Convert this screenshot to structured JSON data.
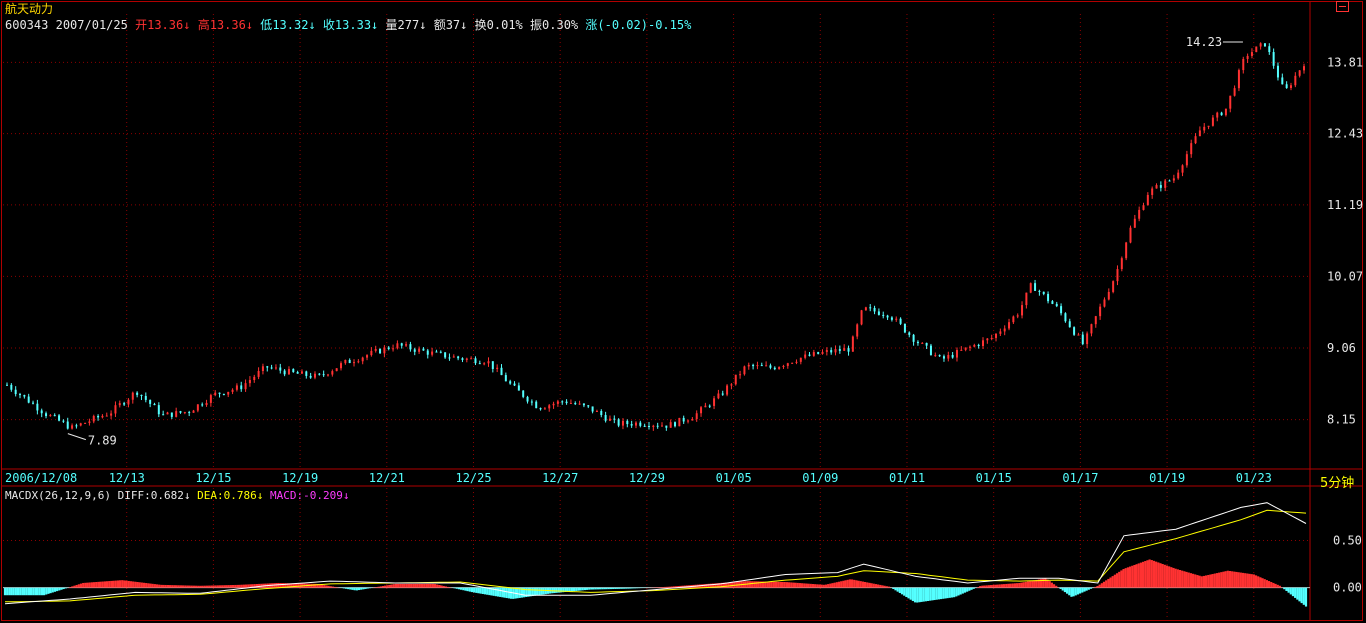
{
  "stock": {
    "name": "航天动力",
    "code": "600343",
    "date": "2007/01/25",
    "open_label": "开",
    "open": "13.36",
    "open_arrow": "↓",
    "high_label": "高",
    "high": "13.36",
    "high_arrow": "↓",
    "low_label": "低",
    "low": "13.32",
    "low_arrow": "↓",
    "close_label": "收",
    "close": "13.33",
    "close_arrow": "↓",
    "volume_label": "量",
    "volume": "277",
    "volume_arrow": "↓",
    "amount_label": "额",
    "amount": "37",
    "amount_arrow": "↓",
    "turnover_label": "换",
    "turnover": "0.01%",
    "amplitude_label": "振",
    "amplitude": "0.30%",
    "change_label": "涨",
    "change": "(-0.02)-0.15%"
  },
  "period_label": "5分钟",
  "macd_legend": {
    "name": "MACDX(26,12,9,6)",
    "diff_label": "DIFF:",
    "diff": "0.682",
    "diff_arrow": "↓",
    "dea_label": "DEA:",
    "dea": "0.786",
    "dea_arrow": "↓",
    "macd_label": "MACD:",
    "macd": "-0.209",
    "macd_arrow": "↓"
  },
  "colors": {
    "background": "#000000",
    "grid": "#8b0000",
    "border": "#b00000",
    "up": "#ff3232",
    "down": "#54ffff",
    "axis_text": "#e8e8e8",
    "date_text": "#54ffff",
    "diff_line": "#ffffff",
    "dea_line": "#ffff00"
  },
  "chart_data": [
    {
      "type": "candlestick",
      "title": "航天动力",
      "x_tick_labels": [
        "2006/12/08",
        "12/13",
        "12/15",
        "12/19",
        "12/21",
        "12/25",
        "12/27",
        "12/29",
        "01/05",
        "01/09",
        "01/11",
        "01/15",
        "01/17",
        "01/19",
        "01/23"
      ],
      "y_tick_labels": [
        "13.81",
        "12.43",
        "11.19",
        "10.07",
        "9.06",
        "8.15"
      ],
      "y_tick_values": [
        13.81,
        12.43,
        11.19,
        10.07,
        9.06,
        8.15
      ],
      "ylim": [
        7.6,
        14.4
      ],
      "log_scale": true,
      "grid": true,
      "annotations": [
        {
          "text": "14.23",
          "price": 14.23,
          "note": "period high"
        },
        {
          "text": "7.89",
          "price": 7.89,
          "note": "period low"
        }
      ],
      "close_path_approx": [
        [
          0,
          8.58
        ],
        [
          0.03,
          8.22
        ],
        [
          0.05,
          8.05
        ],
        [
          0.08,
          8.24
        ],
        [
          0.1,
          8.5
        ],
        [
          0.12,
          8.2
        ],
        [
          0.14,
          8.25
        ],
        [
          0.16,
          8.46
        ],
        [
          0.18,
          8.55
        ],
        [
          0.2,
          8.81
        ],
        [
          0.22,
          8.73
        ],
        [
          0.24,
          8.68
        ],
        [
          0.26,
          8.86
        ],
        [
          0.28,
          8.98
        ],
        [
          0.3,
          9.1
        ],
        [
          0.33,
          8.98
        ],
        [
          0.35,
          8.92
        ],
        [
          0.37,
          8.89
        ],
        [
          0.39,
          8.55
        ],
        [
          0.41,
          8.3
        ],
        [
          0.43,
          8.38
        ],
        [
          0.45,
          8.28
        ],
        [
          0.47,
          8.1
        ],
        [
          0.49,
          8.11
        ],
        [
          0.51,
          8.08
        ],
        [
          0.53,
          8.2
        ],
        [
          0.55,
          8.45
        ],
        [
          0.57,
          8.82
        ],
        [
          0.59,
          8.8
        ],
        [
          0.61,
          8.92
        ],
        [
          0.63,
          9.0
        ],
        [
          0.65,
          9.05
        ],
        [
          0.66,
          9.6
        ],
        [
          0.68,
          9.52
        ],
        [
          0.7,
          9.17
        ],
        [
          0.72,
          8.9
        ],
        [
          0.74,
          9.05
        ],
        [
          0.76,
          9.2
        ],
        [
          0.78,
          9.55
        ],
        [
          0.79,
          9.95
        ],
        [
          0.81,
          9.6
        ],
        [
          0.83,
          9.1
        ],
        [
          0.845,
          9.7
        ],
        [
          0.855,
          10.1
        ],
        [
          0.865,
          10.75
        ],
        [
          0.88,
          11.4
        ],
        [
          0.9,
          11.65
        ],
        [
          0.92,
          12.5
        ],
        [
          0.94,
          12.9
        ],
        [
          0.955,
          13.95
        ],
        [
          0.97,
          14.2
        ],
        [
          0.985,
          13.2
        ],
        [
          1.0,
          13.8
        ]
      ]
    },
    {
      "type": "macd",
      "name": "MACDX(26,12,9,6)",
      "series": [
        {
          "name": "DIFF",
          "last": 0.682
        },
        {
          "name": "DEA",
          "last": 0.786
        },
        {
          "name": "MACD",
          "last": -0.209
        }
      ],
      "y_tick_labels": [
        "0.50",
        "0.00"
      ],
      "y_tick_values": [
        0.5,
        0.0
      ],
      "ylim": [
        -0.3,
        0.95
      ],
      "histogram_approx": [
        [
          0,
          -0.08
        ],
        [
          0.03,
          -0.08
        ],
        [
          0.06,
          0.05
        ],
        [
          0.09,
          0.08
        ],
        [
          0.12,
          0.03
        ],
        [
          0.15,
          0.02
        ],
        [
          0.18,
          0.03
        ],
        [
          0.21,
          0.05
        ],
        [
          0.24,
          0.04
        ],
        [
          0.27,
          -0.03
        ],
        [
          0.3,
          0.04
        ],
        [
          0.33,
          0.04
        ],
        [
          0.36,
          -0.05
        ],
        [
          0.39,
          -0.12
        ],
        [
          0.42,
          -0.06
        ],
        [
          0.45,
          -0.02
        ],
        [
          0.48,
          -0.01
        ],
        [
          0.51,
          0.01
        ],
        [
          0.54,
          0.04
        ],
        [
          0.57,
          0.07
        ],
        [
          0.6,
          0.06
        ],
        [
          0.63,
          0.03
        ],
        [
          0.65,
          0.09
        ],
        [
          0.68,
          0.01
        ],
        [
          0.7,
          -0.16
        ],
        [
          0.73,
          -0.1
        ],
        [
          0.75,
          0.02
        ],
        [
          0.78,
          0.05
        ],
        [
          0.8,
          0.1
        ],
        [
          0.82,
          -0.1
        ],
        [
          0.84,
          0.02
        ],
        [
          0.86,
          0.2
        ],
        [
          0.88,
          0.3
        ],
        [
          0.9,
          0.2
        ],
        [
          0.92,
          0.12
        ],
        [
          0.94,
          0.18
        ],
        [
          0.96,
          0.14
        ],
        [
          0.98,
          0.02
        ],
        [
          1.0,
          -0.2
        ]
      ],
      "diff_approx": [
        [
          0,
          -0.17
        ],
        [
          0.05,
          -0.12
        ],
        [
          0.1,
          -0.05
        ],
        [
          0.15,
          -0.06
        ],
        [
          0.2,
          0.02
        ],
        [
          0.25,
          0.07
        ],
        [
          0.3,
          0.05
        ],
        [
          0.35,
          0.05
        ],
        [
          0.4,
          -0.08
        ],
        [
          0.45,
          -0.08
        ],
        [
          0.5,
          -0.02
        ],
        [
          0.55,
          0.04
        ],
        [
          0.6,
          0.14
        ],
        [
          0.64,
          0.16
        ],
        [
          0.66,
          0.25
        ],
        [
          0.7,
          0.12
        ],
        [
          0.74,
          0.05
        ],
        [
          0.78,
          0.1
        ],
        [
          0.81,
          0.1
        ],
        [
          0.84,
          0.05
        ],
        [
          0.86,
          0.55
        ],
        [
          0.9,
          0.62
        ],
        [
          0.95,
          0.85
        ],
        [
          0.97,
          0.9
        ],
        [
          1.0,
          0.68
        ]
      ],
      "dea_approx": [
        [
          0,
          -0.15
        ],
        [
          0.05,
          -0.14
        ],
        [
          0.1,
          -0.08
        ],
        [
          0.15,
          -0.07
        ],
        [
          0.2,
          -0.01
        ],
        [
          0.25,
          0.04
        ],
        [
          0.3,
          0.05
        ],
        [
          0.35,
          0.06
        ],
        [
          0.4,
          -0.02
        ],
        [
          0.45,
          -0.05
        ],
        [
          0.5,
          -0.03
        ],
        [
          0.55,
          0.01
        ],
        [
          0.6,
          0.08
        ],
        [
          0.64,
          0.12
        ],
        [
          0.66,
          0.18
        ],
        [
          0.7,
          0.15
        ],
        [
          0.74,
          0.08
        ],
        [
          0.78,
          0.07
        ],
        [
          0.81,
          0.08
        ],
        [
          0.84,
          0.07
        ],
        [
          0.86,
          0.38
        ],
        [
          0.9,
          0.52
        ],
        [
          0.95,
          0.72
        ],
        [
          0.97,
          0.82
        ],
        [
          1.0,
          0.79
        ]
      ]
    }
  ]
}
